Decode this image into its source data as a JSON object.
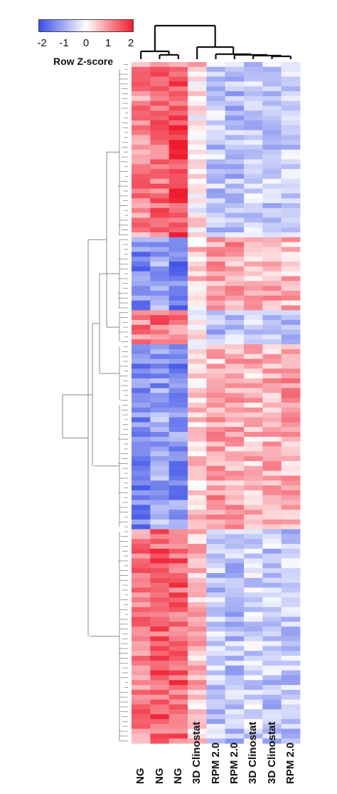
{
  "chart_data": {
    "type": "heatmap",
    "title": "",
    "legend": {
      "title": "Row Z-score",
      "ticks": [
        "-2",
        "-1",
        "0",
        "1",
        "2"
      ],
      "range": [
        -2,
        2
      ],
      "colors": {
        "low": "#3a4fe6",
        "mid": "#ffffff",
        "high": "#ef1c2e"
      }
    },
    "columns": [
      "NG",
      "NG",
      "NG",
      "3D Clinostat",
      "RPM 2.0",
      "RPM 2.0",
      "3D Clinostat",
      "3D Clinostat",
      "RPM 2.0"
    ],
    "column_dendrogram": true,
    "row_dendrogram": true,
    "row_count": 140,
    "row_blocks": [
      {
        "rows": 1,
        "profile": [
          0.3,
          1.1,
          0.5,
          0.4,
          -0.3,
          -0.4,
          -0.6,
          -0.5,
          -0.5
        ]
      },
      {
        "rows": 35,
        "profile": [
          1.0,
          1.3,
          1.6,
          0.1,
          -0.6,
          -0.7,
          -0.5,
          -0.6,
          -0.6
        ]
      },
      {
        "rows": 15,
        "profile": [
          -1.3,
          -0.9,
          -1.5,
          0.4,
          0.8,
          0.8,
          0.6,
          0.7,
          0.6
        ]
      },
      {
        "rows": 7,
        "profile": [
          1.1,
          1.2,
          1.2,
          0.0,
          -0.7,
          -0.6,
          -0.4,
          -0.7,
          -0.6
        ]
      },
      {
        "rows": 12,
        "profile": [
          -1.4,
          -1.1,
          -1.5,
          0.3,
          0.6,
          0.7,
          0.6,
          0.6,
          0.8
        ]
      },
      {
        "rows": 26,
        "profile": [
          -1.3,
          -0.9,
          -1.2,
          0.4,
          0.9,
          0.7,
          0.6,
          0.7,
          0.7
        ]
      },
      {
        "rows": 44,
        "profile": [
          1.1,
          1.4,
          1.4,
          0.6,
          -0.6,
          -0.7,
          -0.4,
          -0.6,
          -0.6
        ]
      }
    ]
  }
}
